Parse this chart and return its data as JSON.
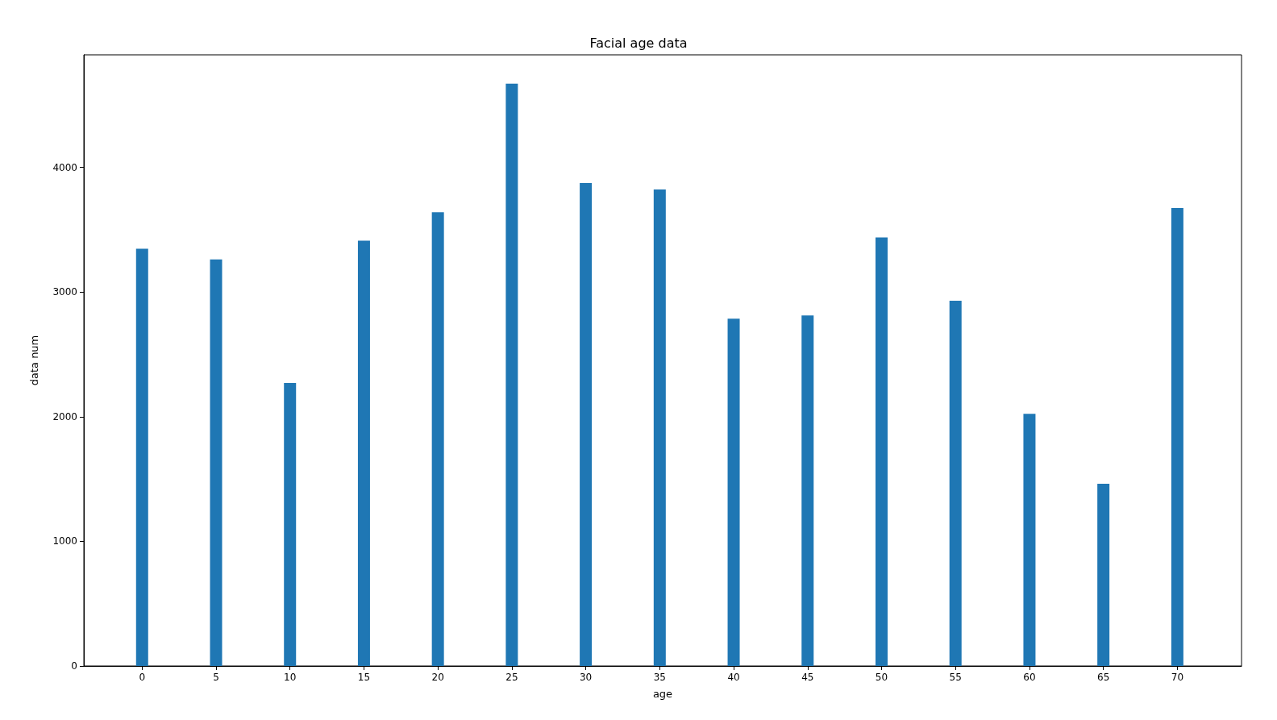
{
  "chart_data": {
    "type": "bar",
    "title": "Facial age data",
    "xlabel": "age",
    "ylabel": "data num",
    "x": [
      0,
      5,
      10,
      15,
      20,
      25,
      30,
      35,
      40,
      45,
      50,
      55,
      60,
      65,
      70
    ],
    "values": [
      3348,
      3263,
      2271,
      3413,
      3641,
      4672,
      3876,
      3824,
      2786,
      2812,
      3439,
      2930,
      2023,
      1462,
      3674
    ],
    "color": "#1f77b4",
    "xlim": [
      -3.94,
      74.34
    ],
    "xticks": [
      0,
      5,
      10,
      15,
      20,
      25,
      30,
      35,
      40,
      45,
      50,
      55,
      60,
      65,
      70
    ],
    "ylim": [
      0,
      4904
    ],
    "yticks": [
      0,
      1000,
      2000,
      3000,
      4000
    ]
  }
}
